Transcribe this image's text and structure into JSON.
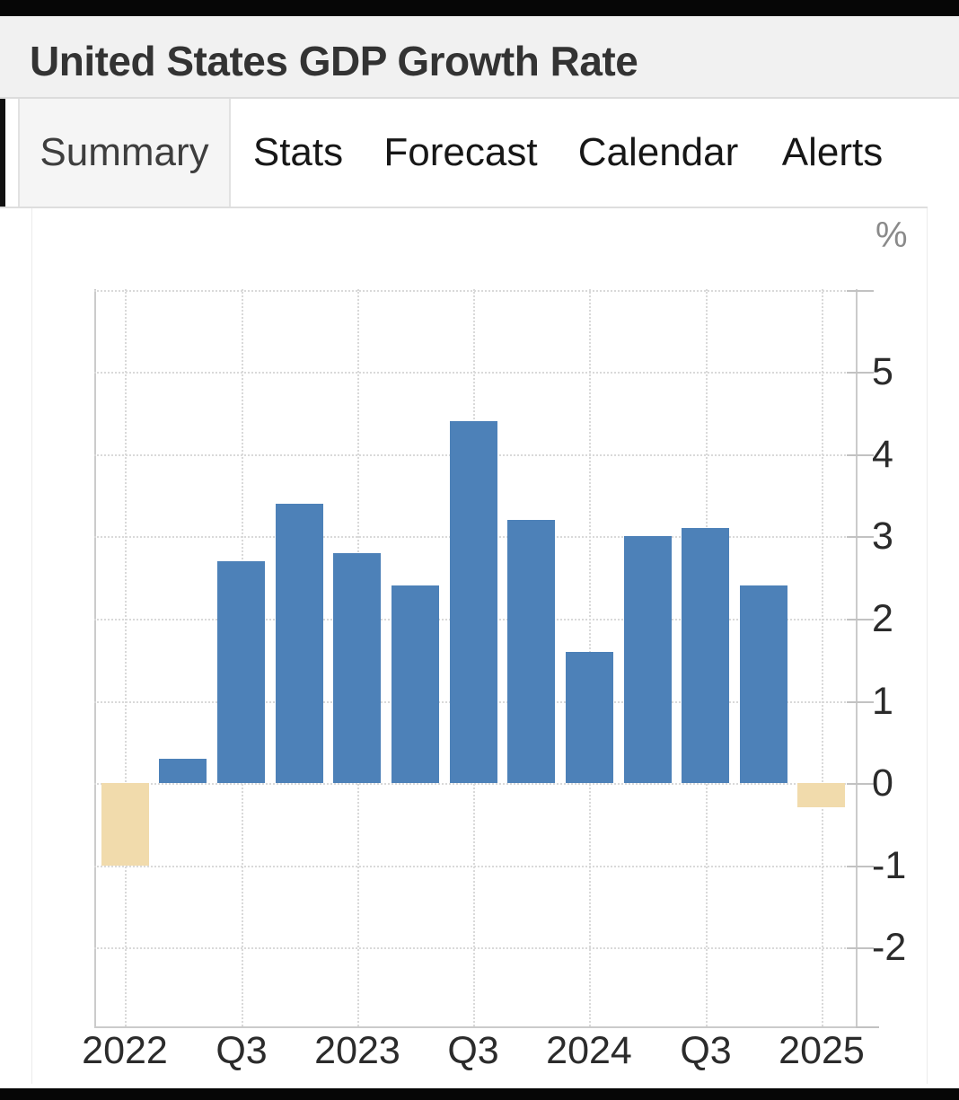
{
  "header": {
    "title": "United States GDP Growth Rate"
  },
  "tabs": [
    {
      "label": "Summary",
      "active": true
    },
    {
      "label": "Stats",
      "active": false
    },
    {
      "label": "Forecast",
      "active": false
    },
    {
      "label": "Calendar",
      "active": false
    },
    {
      "label": "Alerts",
      "active": false
    }
  ],
  "chart_data": {
    "type": "bar",
    "title": "United States GDP Growth Rate",
    "xlabel": "",
    "ylabel": "%",
    "categories": [
      "2022 Q1",
      "2022 Q2",
      "2022 Q3",
      "2022 Q4",
      "2023 Q1",
      "2023 Q2",
      "2023 Q3",
      "2023 Q4",
      "2024 Q1",
      "2024 Q2",
      "2024 Q3",
      "2024 Q4",
      "2025 Q1"
    ],
    "values": [
      -1.0,
      0.3,
      2.7,
      3.4,
      2.8,
      2.4,
      4.4,
      3.2,
      1.6,
      3.0,
      3.1,
      2.4,
      -0.3
    ],
    "x_tick_labels": [
      "2022",
      "Q3",
      "2023",
      "Q3",
      "2024",
      "Q3",
      "2025"
    ],
    "y_ticks": [
      5,
      4,
      3,
      2,
      1,
      0,
      -1,
      -2
    ],
    "ylim": [
      -2.96,
      6.01
    ],
    "grid": true,
    "legend": "none",
    "colors": {
      "positive": "#4d81b8",
      "negative": "#f1dbac"
    }
  }
}
